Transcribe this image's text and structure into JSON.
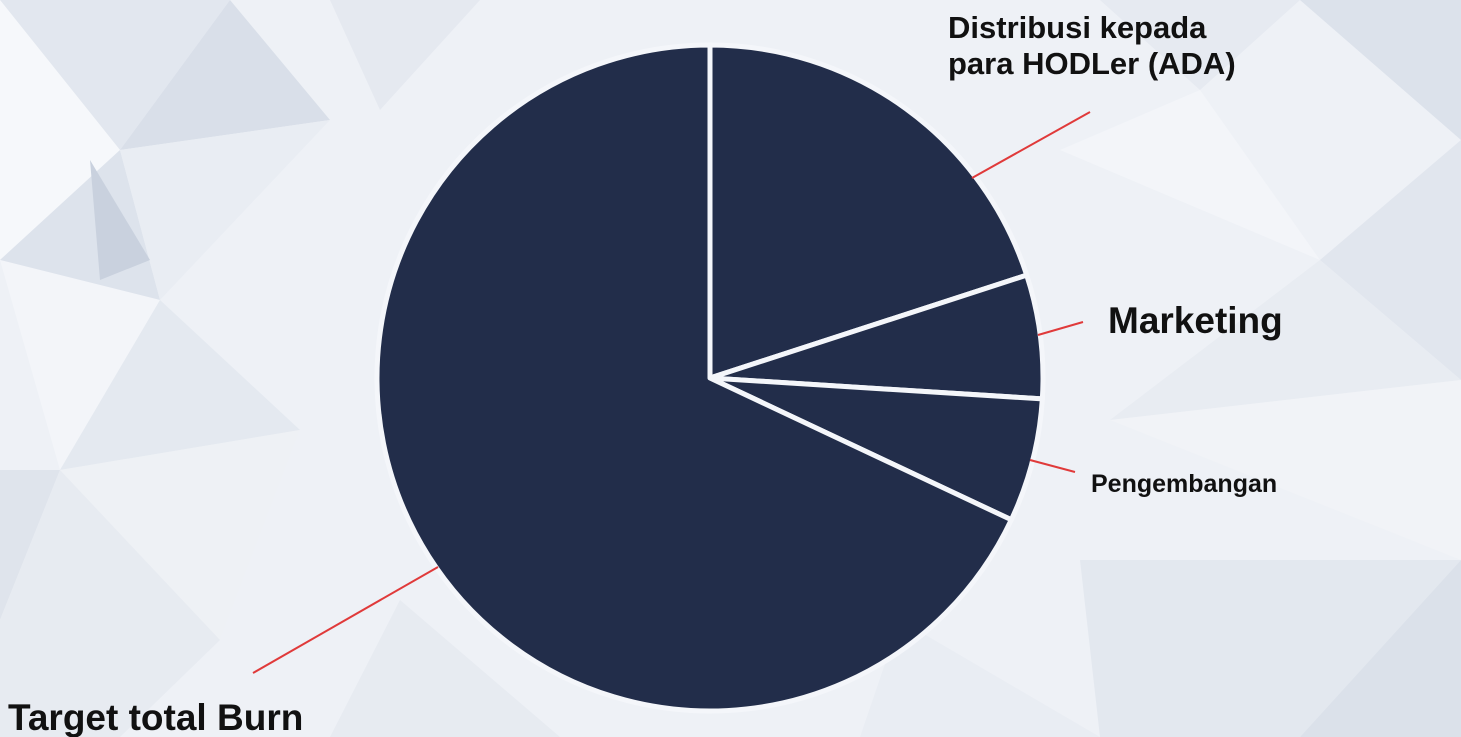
{
  "colors": {
    "slice_fill": "#222d4a",
    "slice_border": "#f4f6fa",
    "leader_line": "#e03a3a",
    "label_text": "#111111",
    "background": "#eef1f6"
  },
  "chart_data": {
    "type": "pie",
    "title": "",
    "start": "top",
    "direction": "clockwise",
    "legend": "none",
    "slices": [
      {
        "label_lines": [
          "Distribusi kepada",
          "para HODLer (ADA)"
        ],
        "value": 20
      },
      {
        "label_lines": [
          "Marketing"
        ],
        "value": 6
      },
      {
        "label_lines": [
          "Pengembangan"
        ],
        "value": 6
      },
      {
        "label_lines": [
          "Target total Burn"
        ],
        "value": 68
      }
    ]
  }
}
